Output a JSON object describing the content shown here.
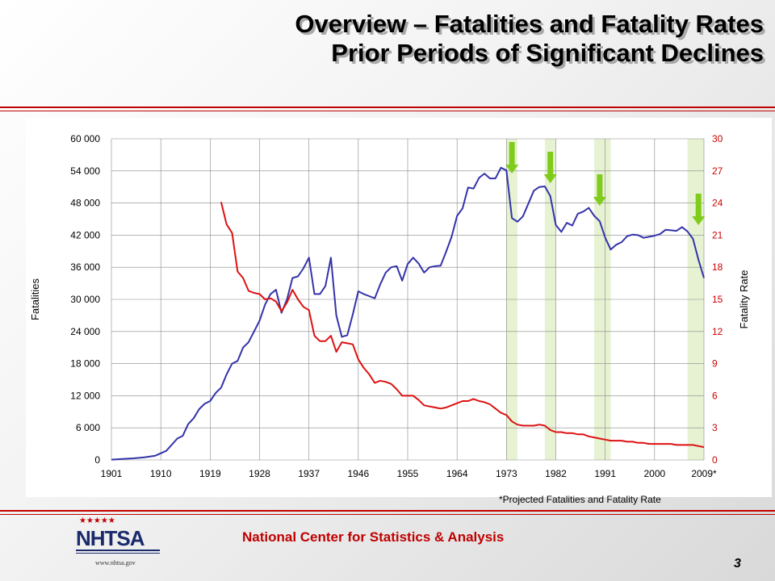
{
  "title": {
    "line1": "Overview – Fatalities and Fatality Rates",
    "line2": "Prior Periods of Significant Declines"
  },
  "footnote": "*Projected Fatalities and Fatality Rate",
  "footer": "National Center for Statistics & Analysis",
  "page_number": "3",
  "logo": {
    "text": "NHTSA",
    "url": "www.nhtsa.gov"
  },
  "colors": {
    "fatalities": "#3333aa",
    "rate": "#dd1111",
    "band": "#e6f2d2",
    "arrow": "#80cc1a",
    "accent": "#c00000"
  },
  "chart_data": {
    "type": "line",
    "x_tick_labels": [
      "1901",
      "1910",
      "1919",
      "1928",
      "1937",
      "1946",
      "1955",
      "1964",
      "1973",
      "1982",
      "1991",
      "2000",
      "2009*"
    ],
    "xlim": [
      1901,
      2009
    ],
    "y_left": {
      "label": "Fatalities",
      "lim": [
        0,
        60000
      ],
      "ticks": [
        "0",
        "6 000",
        "12 000",
        "18 000",
        "24 000",
        "30 000",
        "36 000",
        "42 000",
        "48 000",
        "54 000",
        "60 000"
      ]
    },
    "y_right": {
      "label": "Fatality Rate",
      "lim": [
        0,
        30
      ],
      "ticks": [
        "0",
        "3",
        "6",
        "9",
        "12",
        "15",
        "18",
        "21",
        "24",
        "27",
        "30"
      ]
    },
    "highlight_periods": [
      [
        1973,
        1975
      ],
      [
        1980,
        1982
      ],
      [
        1989,
        1992
      ],
      [
        2006,
        2009
      ]
    ],
    "decline_arrows": [
      1974,
      1981,
      1990,
      2008
    ],
    "series": [
      {
        "axis": "left",
        "color": "#3333aa",
        "x": [
          1901,
          1903,
          1905,
          1907,
          1909,
          1911,
          1913,
          1914,
          1915,
          1916,
          1917,
          1918,
          1919,
          1920,
          1921,
          1922,
          1923,
          1924,
          1925,
          1926,
          1927,
          1928,
          1929,
          1930,
          1931,
          1932,
          1933,
          1934,
          1935,
          1936,
          1937,
          1938,
          1939,
          1940,
          1941,
          1942,
          1943,
          1944,
          1945,
          1946,
          1947,
          1948,
          1949,
          1950,
          1951,
          1952,
          1953,
          1954,
          1955,
          1956,
          1957,
          1958,
          1959,
          1960,
          1961,
          1962,
          1963,
          1964,
          1965,
          1966,
          1967,
          1968,
          1969,
          1970,
          1971,
          1972,
          1973,
          1974,
          1975,
          1976,
          1977,
          1978,
          1979,
          1980,
          1981,
          1982,
          1983,
          1984,
          1985,
          1986,
          1987,
          1988,
          1989,
          1990,
          1991,
          1992,
          1993,
          1994,
          1995,
          1996,
          1997,
          1998,
          1999,
          2000,
          2001,
          2002,
          2003,
          2004,
          2005,
          2006,
          2007,
          2008,
          2009
        ],
        "values": [
          54,
          200,
          300,
          500,
          800,
          1700,
          4000,
          4500,
          6700,
          7800,
          9500,
          10500,
          11000,
          12500,
          13500,
          16000,
          18000,
          18500,
          21000,
          22000,
          24000,
          26000,
          29000,
          31000,
          31800,
          27500,
          30000,
          34000,
          34300,
          35800,
          37800,
          31000,
          31000,
          32500,
          37800,
          27000,
          23000,
          23300,
          27200,
          31500,
          31000,
          30600,
          30200,
          32800,
          35000,
          36000,
          36200,
          33500,
          36600,
          37800,
          36700,
          35000,
          36000,
          36200,
          36300,
          38900,
          41700,
          45600,
          47000,
          50900,
          50700,
          52700,
          53500,
          52600,
          52600,
          54600,
          54100,
          45200,
          44500,
          45500,
          47900,
          50300,
          51000,
          51100,
          49300,
          43900,
          42600,
          44300,
          43800,
          46000,
          46400,
          47100,
          45600,
          44600,
          41500,
          39300,
          40200,
          40700,
          41800,
          42100,
          42000,
          41500,
          41700,
          41900,
          42200,
          43000,
          42900,
          42800,
          43500,
          42700,
          41300,
          37400,
          34000
        ]
      },
      {
        "axis": "right",
        "color": "#dd1111",
        "x": [
          1921,
          1922,
          1923,
          1924,
          1925,
          1926,
          1927,
          1928,
          1929,
          1930,
          1931,
          1932,
          1933,
          1934,
          1935,
          1936,
          1937,
          1938,
          1939,
          1940,
          1941,
          1942,
          1943,
          1944,
          1945,
          1946,
          1947,
          1948,
          1949,
          1950,
          1951,
          1952,
          1953,
          1954,
          1955,
          1956,
          1957,
          1958,
          1959,
          1960,
          1961,
          1962,
          1963,
          1964,
          1965,
          1966,
          1967,
          1968,
          1969,
          1970,
          1971,
          1972,
          1973,
          1974,
          1975,
          1976,
          1977,
          1978,
          1979,
          1980,
          1981,
          1982,
          1983,
          1984,
          1985,
          1986,
          1987,
          1988,
          1989,
          1990,
          1991,
          1992,
          1993,
          1994,
          1995,
          1996,
          1997,
          1998,
          1999,
          2000,
          2001,
          2002,
          2003,
          2004,
          2005,
          2006,
          2007,
          2008,
          2009
        ],
        "values": [
          24.1,
          22.0,
          21.2,
          17.6,
          17.0,
          15.8,
          15.6,
          15.5,
          15.0,
          15.1,
          14.8,
          13.9,
          14.7,
          15.9,
          15.0,
          14.3,
          14.0,
          11.6,
          11.1,
          11.1,
          11.6,
          10.1,
          11.0,
          10.9,
          10.8,
          9.4,
          8.6,
          8.0,
          7.2,
          7.4,
          7.3,
          7.1,
          6.6,
          6.0,
          6.0,
          6.0,
          5.6,
          5.1,
          5.0,
          4.9,
          4.8,
          4.9,
          5.1,
          5.3,
          5.5,
          5.5,
          5.7,
          5.5,
          5.4,
          5.2,
          4.8,
          4.4,
          4.2,
          3.6,
          3.3,
          3.2,
          3.2,
          3.2,
          3.3,
          3.2,
          2.8,
          2.6,
          2.6,
          2.5,
          2.5,
          2.4,
          2.4,
          2.2,
          2.1,
          2.0,
          1.9,
          1.8,
          1.8,
          1.8,
          1.7,
          1.7,
          1.6,
          1.6,
          1.5,
          1.5,
          1.5,
          1.5,
          1.5,
          1.4,
          1.4,
          1.4,
          1.4,
          1.3,
          1.2
        ]
      }
    ]
  }
}
